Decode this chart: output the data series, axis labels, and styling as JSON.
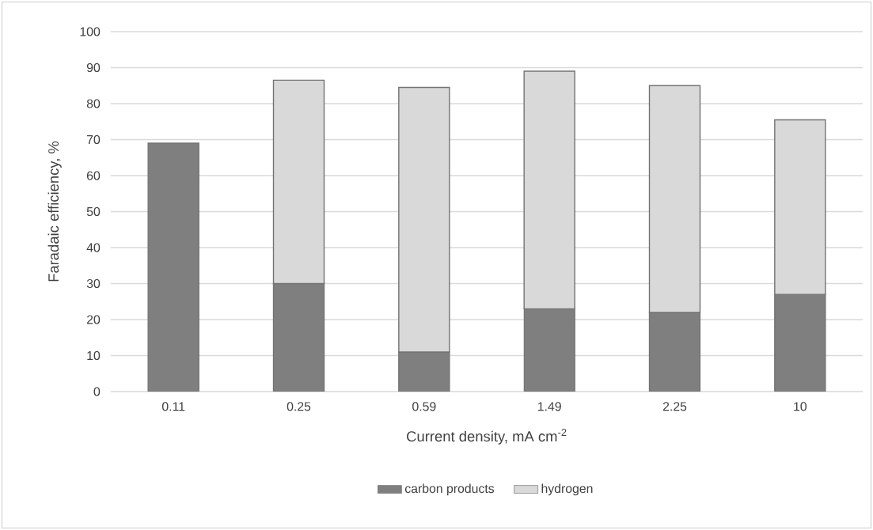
{
  "chart_data": {
    "type": "bar",
    "xlabel": "Current density, mA cm$^{-2}$",
    "ylabel": "Faradaic efficiency, %",
    "categories": [
      "0.11",
      "0.25",
      "0.59",
      "1.49",
      "2.25",
      "10"
    ],
    "series": [
      {
        "name": "carbon products",
        "color": "#7f7f7f",
        "values": [
          69,
          30,
          11,
          23,
          22,
          27
        ]
      },
      {
        "name": "hydrogen",
        "color": "#d9d9d9",
        "values": [
          null,
          56.5,
          73.5,
          66,
          63,
          48.5
        ]
      }
    ],
    "stacked": true,
    "ylim": [
      0,
      100
    ],
    "yticks": [
      0,
      10,
      20,
      30,
      40,
      50,
      60,
      70,
      80,
      90,
      100
    ],
    "grid": "y",
    "legend": "bottom"
  }
}
